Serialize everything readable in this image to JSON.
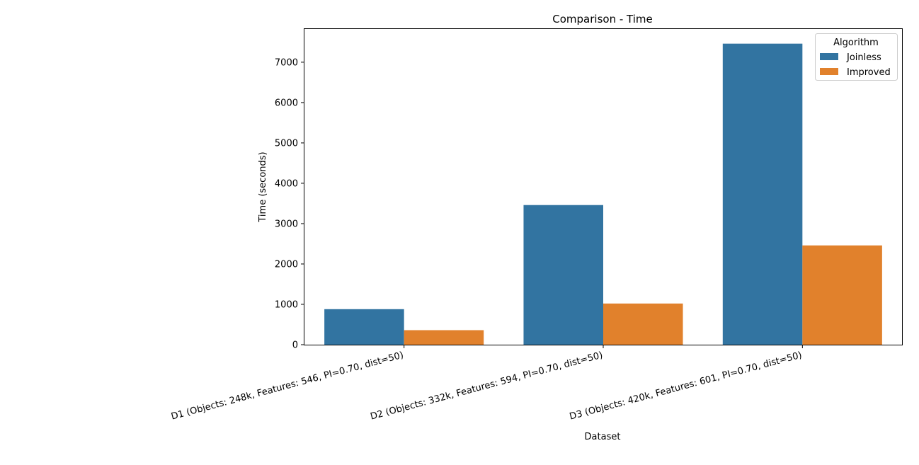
{
  "chart_data": {
    "type": "bar",
    "title": "Comparison - Time",
    "xlabel": "Dataset",
    "ylabel": "Time (seconds)",
    "categories": [
      "D1 (Objects: 248k, Features: 546, PI=0.70, dist=50)",
      "D2 (Objects: 332k, Features: 594, PI=0.70, dist=50)",
      "D3 (Objects: 420k, Features: 601, PI=0.70, dist=50)"
    ],
    "series": [
      {
        "name": "Joinless",
        "color": "#3274a1",
        "values": [
          880,
          3460,
          7460
        ]
      },
      {
        "name": "Improved",
        "color": "#e1812c",
        "values": [
          360,
          1020,
          2460
        ]
      }
    ],
    "ylim": [
      0,
      7840
    ],
    "yticks": [
      0,
      1000,
      2000,
      3000,
      4000,
      5000,
      6000,
      7000
    ],
    "legend": {
      "title": "Algorithm",
      "placement": "top-right"
    },
    "grid": false
  }
}
